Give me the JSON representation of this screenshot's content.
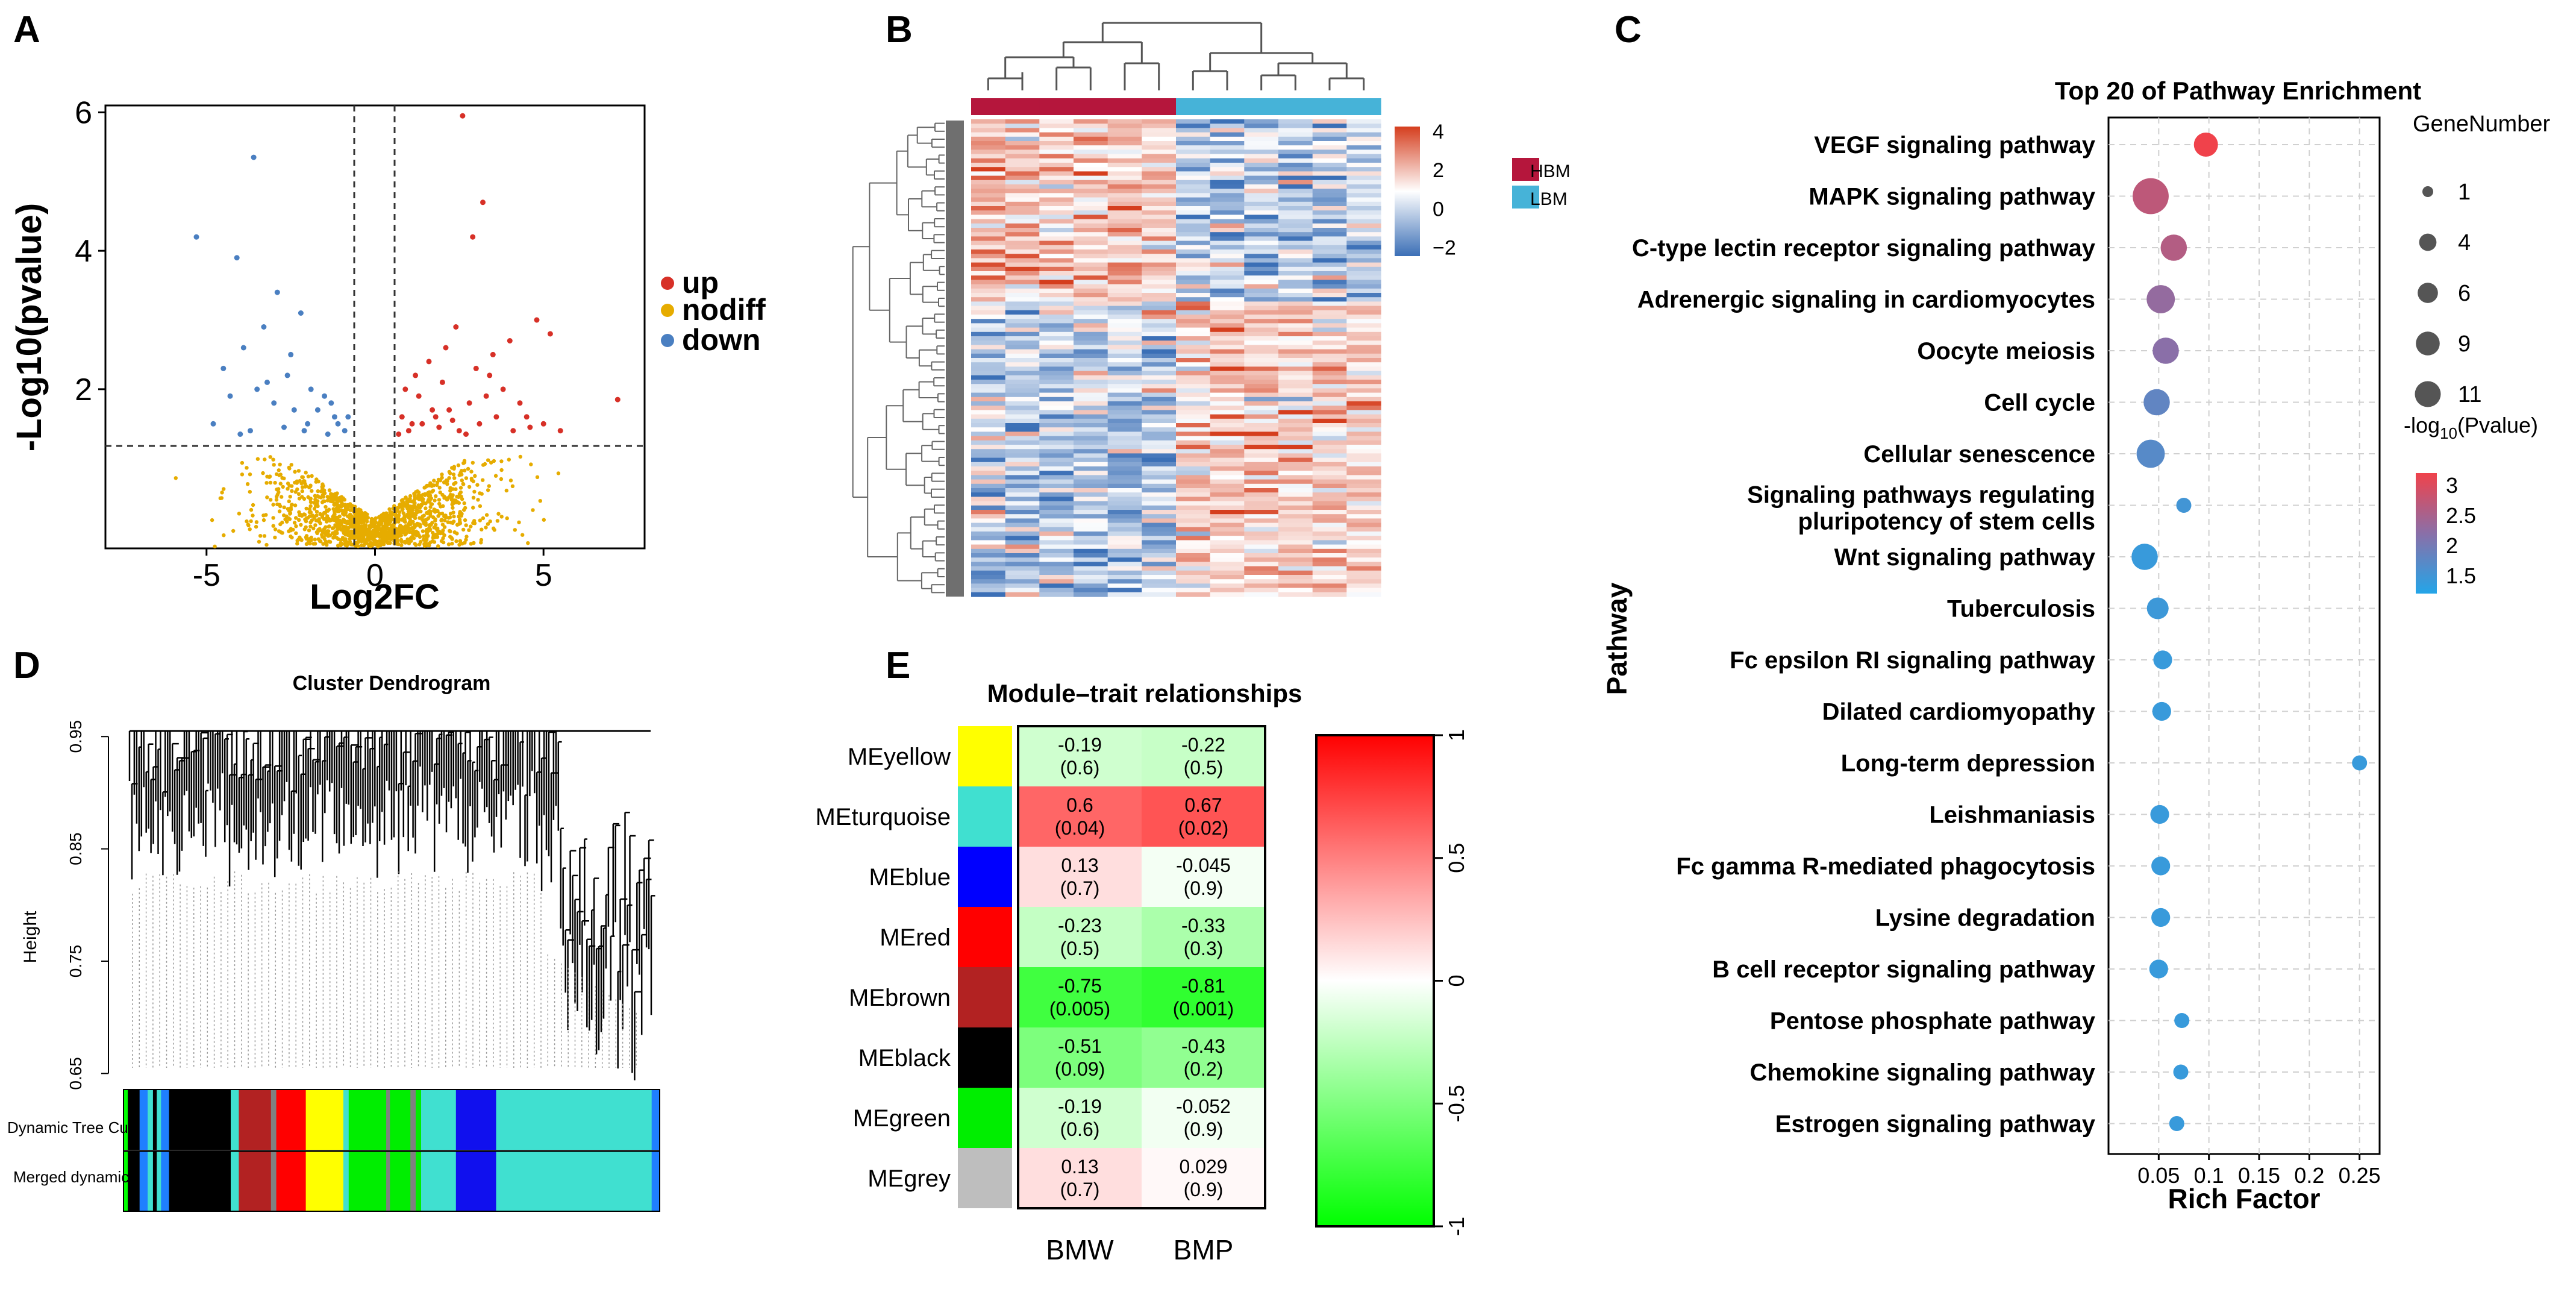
{
  "panels": {
    "A": "A",
    "B": "B",
    "C": "C",
    "D": "D",
    "E": "E"
  },
  "chart_data": [
    {
      "panel": "A",
      "type": "scatter",
      "xlabel": "Log2FC",
      "ylabel": "-Log10(pvalue)",
      "xlim": [
        -8,
        8
      ],
      "ylim": [
        -0.3,
        6.1
      ],
      "xticks": [
        "-5",
        "0",
        "5"
      ],
      "xtick_values": [
        -5,
        0,
        5
      ],
      "yticks": [
        "2",
        "4",
        "6"
      ],
      "ytick_values": [
        2,
        4,
        6
      ],
      "legend": [
        {
          "label": "up",
          "color": "#d73027"
        },
        {
          "label": "nodiff",
          "color": "#e6ac00"
        },
        {
          "label": "down",
          "color": "#4a7fc1"
        }
      ],
      "thresholds": {
        "log2fc": [
          -0.58,
          0.58
        ],
        "neg_log10_p": 1.3
      },
      "series": [
        {
          "name": "up",
          "x": [
            2.6,
            3.2,
            2.9,
            4.8,
            5.2,
            4.0,
            3.5,
            2.4,
            2.1,
            1.6,
            1.2,
            0.9,
            3.8,
            3.3,
            2.8,
            2.2,
            1.8,
            1.4,
            1.0,
            4.5,
            5.0,
            3.1,
            2.5,
            1.9,
            7.2,
            4.3,
            0.8,
            1.3,
            2.0,
            3.6,
            4.1,
            2.7,
            3.0,
            1.7,
            1.1,
            4.6,
            2.3,
            3.4,
            5.5,
            0.7
          ],
          "y": [
            5.95,
            4.7,
            4.2,
            3.0,
            2.8,
            2.7,
            2.5,
            2.9,
            2.6,
            2.4,
            2.2,
            2.0,
            2.0,
            1.9,
            1.8,
            1.7,
            1.6,
            1.5,
            1.4,
            1.6,
            1.5,
            1.5,
            1.4,
            1.45,
            1.85,
            1.8,
            1.6,
            1.9,
            2.1,
            1.6,
            1.4,
            1.35,
            2.3,
            1.7,
            1.5,
            1.45,
            1.55,
            2.2,
            1.4,
            1.35
          ]
        },
        {
          "name": "down",
          "x": [
            -3.6,
            -5.3,
            -4.1,
            -2.9,
            -2.2,
            -3.3,
            -3.9,
            -4.5,
            -2.6,
            -1.9,
            -1.5,
            -1.2,
            -3.0,
            -2.4,
            -4.8,
            -3.7,
            -2.0,
            -1.4,
            -0.9,
            -3.5,
            -4.3,
            -2.7,
            -1.7,
            -1.1,
            -4.0,
            -2.5,
            -3.2,
            -0.8,
            -1.3,
            -2.1
          ],
          "y": [
            5.35,
            4.2,
            3.9,
            3.4,
            3.1,
            2.9,
            2.6,
            2.3,
            2.2,
            2.0,
            1.9,
            1.6,
            1.8,
            1.7,
            1.5,
            1.4,
            1.5,
            1.35,
            1.4,
            2.0,
            1.9,
            1.45,
            1.7,
            1.5,
            1.35,
            2.5,
            2.1,
            1.6,
            1.8,
            1.4
          ]
        }
      ]
    },
    {
      "panel": "B",
      "type": "heatmap",
      "colorbar_ticks": [
        "4",
        "2",
        "0",
        "−2"
      ],
      "colorbar_tick_values": [
        4,
        2,
        0,
        -2
      ],
      "colors": {
        "high": "#d53e1e",
        "mid": "#ffffff",
        "low": "#3b6fb6"
      },
      "annotation": [
        {
          "label": "HBM",
          "color": "#b5163c"
        },
        {
          "label": "LBM",
          "color": "#46b3d8"
        }
      ],
      "groups": [
        "HBM",
        "HBM",
        "HBM",
        "HBM",
        "HBM",
        "HBM",
        "LBM",
        "LBM",
        "LBM",
        "LBM",
        "LBM",
        "LBM"
      ]
    },
    {
      "panel": "C",
      "type": "scatter",
      "title": "Top 20 of Pathway Enrichment",
      "xlabel": "Rich Factor",
      "ylabel": "Pathway",
      "xlim": [
        0.0,
        0.27
      ],
      "xticks": [
        "0.05",
        "0.1",
        "0.15",
        "0.2",
        "0.25"
      ],
      "xtick_values": [
        0.05,
        0.1,
        0.15,
        0.2,
        0.25
      ],
      "size_legend_title": "GeneNumber",
      "size_legend": [
        "1",
        "4",
        "6",
        "9",
        "11"
      ],
      "size_legend_values": [
        1,
        4,
        6,
        9,
        11
      ],
      "color_legend_title": "-log10(Pvalue)",
      "color_legend_title_main": "-log",
      "color_legend_title_sub": "10",
      "color_legend_title_tail": "(Pvalue)",
      "color_ticks": [
        "3",
        "2.5",
        "2",
        "1.5"
      ],
      "color_tick_values": [
        3,
        2.5,
        2,
        1.5
      ],
      "color_range": [
        1.2,
        3.2
      ],
      "pathways": [
        {
          "name": "VEGF signaling pathway",
          "rich": 0.097,
          "genes": 4,
          "p": 3.2
        },
        {
          "name": "MAPK signaling pathway",
          "rich": 0.042,
          "genes": 11,
          "p": 2.7
        },
        {
          "name": "C-type lectin receptor signaling pathway",
          "rich": 0.065,
          "genes": 5,
          "p": 2.6
        },
        {
          "name": "Adrenergic signaling in cardiomyocytes",
          "rich": 0.052,
          "genes": 6,
          "p": 2.3
        },
        {
          "name": "Oocyte meiosis",
          "rich": 0.057,
          "genes": 5,
          "p": 2.2
        },
        {
          "name": "Cell cycle",
          "rich": 0.048,
          "genes": 5,
          "p": 1.8
        },
        {
          "name": "Cellular senescence",
          "rich": 0.042,
          "genes": 6,
          "p": 1.7
        },
        {
          "name": "Signaling pathways regulating pluripotency of stem cells",
          "rich": 0.075,
          "genes": 1,
          "p": 1.5
        },
        {
          "name": "Wnt signaling pathway",
          "rich": 0.036,
          "genes": 5,
          "p": 1.4
        },
        {
          "name": "Tuberculosis",
          "rich": 0.049,
          "genes": 3,
          "p": 1.45
        },
        {
          "name": "Fc epsilon RI signaling pathway",
          "rich": 0.054,
          "genes": 2,
          "p": 1.4
        },
        {
          "name": "Dilated cardiomyopathy",
          "rich": 0.053,
          "genes": 2,
          "p": 1.4
        },
        {
          "name": "Long-term depression",
          "rich": 0.25,
          "genes": 1,
          "p": 1.4
        },
        {
          "name": "Leishmaniasis",
          "rich": 0.051,
          "genes": 2,
          "p": 1.4
        },
        {
          "name": "Fc gamma R-mediated phagocytosis",
          "rich": 0.052,
          "genes": 2,
          "p": 1.4
        },
        {
          "name": "Lysine degradation",
          "rich": 0.052,
          "genes": 2,
          "p": 1.4
        },
        {
          "name": "B cell receptor signaling pathway",
          "rich": 0.05,
          "genes": 2,
          "p": 1.4
        },
        {
          "name": "Pentose phosphate pathway",
          "rich": 0.073,
          "genes": 1,
          "p": 1.4
        },
        {
          "name": "Chemokine signaling pathway",
          "rich": 0.072,
          "genes": 1,
          "p": 1.4
        },
        {
          "name": "Estrogen signaling pathway",
          "rich": 0.068,
          "genes": 1,
          "p": 1.4
        }
      ]
    },
    {
      "panel": "D",
      "type": "dendrogram",
      "title": "Cluster Dendrogram",
      "ylabel": "Height",
      "ylim": [
        0.64,
        0.97
      ],
      "yticks": [
        "0.95",
        "0.85",
        "0.75",
        "0.65"
      ],
      "ytick_values": [
        0.95,
        0.85,
        0.75,
        0.65
      ],
      "color_row_labels": [
        "Dynamic Tree Cut",
        "Merged dynamic"
      ],
      "module_colors": [
        "#00ff00",
        "#000000",
        "#1f7fff",
        "#40e0d0",
        "#a52a2a",
        "#ff0000",
        "#ffff00",
        "#00e000",
        "#808080",
        "#1010ee",
        "#40e0d0",
        "#0050ff"
      ]
    },
    {
      "panel": "E",
      "type": "heatmap",
      "title": "Module–trait relationships",
      "columns": [
        "BMW",
        "BMP"
      ],
      "rows": [
        "MEyellow",
        "MEturquoise",
        "MEblue",
        "MEred",
        "MEbrown",
        "MEblack",
        "MEgreen",
        "MEgrey"
      ],
      "row_colors": [
        "#ffff00",
        "#40e0d0",
        "#0000ff",
        "#ff0000",
        "#b22222",
        "#000000",
        "#00ee00",
        "#bebebe"
      ],
      "values": [
        [
          -0.19,
          -0.22
        ],
        [
          0.6,
          0.67
        ],
        [
          0.13,
          -0.045
        ],
        [
          -0.23,
          -0.33
        ],
        [
          -0.75,
          -0.81
        ],
        [
          -0.51,
          -0.43
        ],
        [
          -0.19,
          -0.052
        ],
        [
          0.13,
          0.029
        ]
      ],
      "cell_text": [
        [
          [
            "-0.19",
            "(0.6)"
          ],
          [
            "-0.22",
            "(0.5)"
          ]
        ],
        [
          [
            "0.6",
            "(0.04)"
          ],
          [
            "0.67",
            "(0.02)"
          ]
        ],
        [
          [
            "0.13",
            "(0.7)"
          ],
          [
            "-0.045",
            "(0.9)"
          ]
        ],
        [
          [
            "-0.23",
            "(0.5)"
          ],
          [
            "-0.33",
            "(0.3)"
          ]
        ],
        [
          [
            "-0.75",
            "(0.005)"
          ],
          [
            "-0.81",
            "(0.001)"
          ]
        ],
        [
          [
            "-0.51",
            "(0.09)"
          ],
          [
            "-0.43",
            "(0.2)"
          ]
        ],
        [
          [
            "-0.19",
            "(0.6)"
          ],
          [
            "-0.052",
            "(0.9)"
          ]
        ],
        [
          [
            "0.13",
            "(0.7)"
          ],
          [
            "0.029",
            "(0.9)"
          ]
        ]
      ],
      "colorbar_ticks": [
        "1",
        "0.5",
        "0",
        "-0.5",
        "-1"
      ],
      "colorbar_tick_values": [
        1,
        0.5,
        0,
        -0.5,
        -1
      ],
      "colors": {
        "positive": "#ff0000",
        "zero": "#ffffff",
        "negative": "#00ff00"
      }
    }
  ]
}
